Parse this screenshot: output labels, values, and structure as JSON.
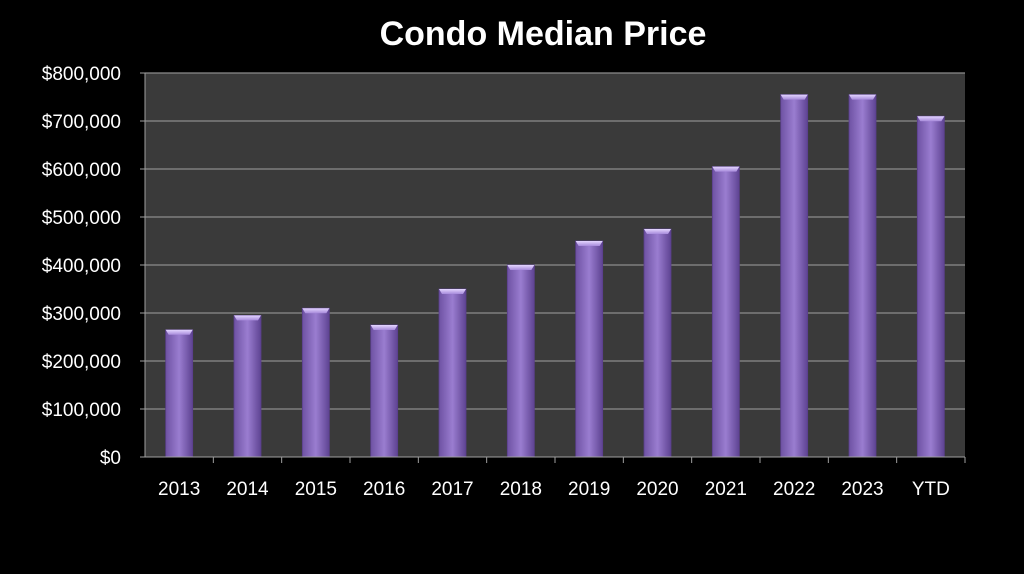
{
  "chart_data": {
    "type": "bar",
    "title": "Condo Median Price",
    "xlabel": "",
    "ylabel": "",
    "categories": [
      "2013",
      "2014",
      "2015",
      "2016",
      "2017",
      "2018",
      "2019",
      "2020",
      "2021",
      "2022",
      "2023",
      "YTD"
    ],
    "values": [
      265000,
      295000,
      310000,
      275000,
      350000,
      400000,
      450000,
      475000,
      605000,
      755000,
      755000,
      710000
    ],
    "ylim": [
      0,
      800000
    ],
    "yticks": [
      0,
      100000,
      200000,
      300000,
      400000,
      500000,
      600000,
      700000,
      800000
    ],
    "ytick_labels": [
      "$0",
      "$100,000",
      "$200,000",
      "$300,000",
      "$400,000",
      "$500,000",
      "$600,000",
      "$700,000",
      "$800,000"
    ],
    "grid": true,
    "legend": "none",
    "colors": {
      "background": "#000000",
      "plot_background": "#3a3a3a",
      "bar_fill": "#8b6cc0",
      "bar_top": "#cdb8f0",
      "bar_edge": "#5a3f8c",
      "grid": "#8c8c8c",
      "text": "#ffffff"
    }
  }
}
